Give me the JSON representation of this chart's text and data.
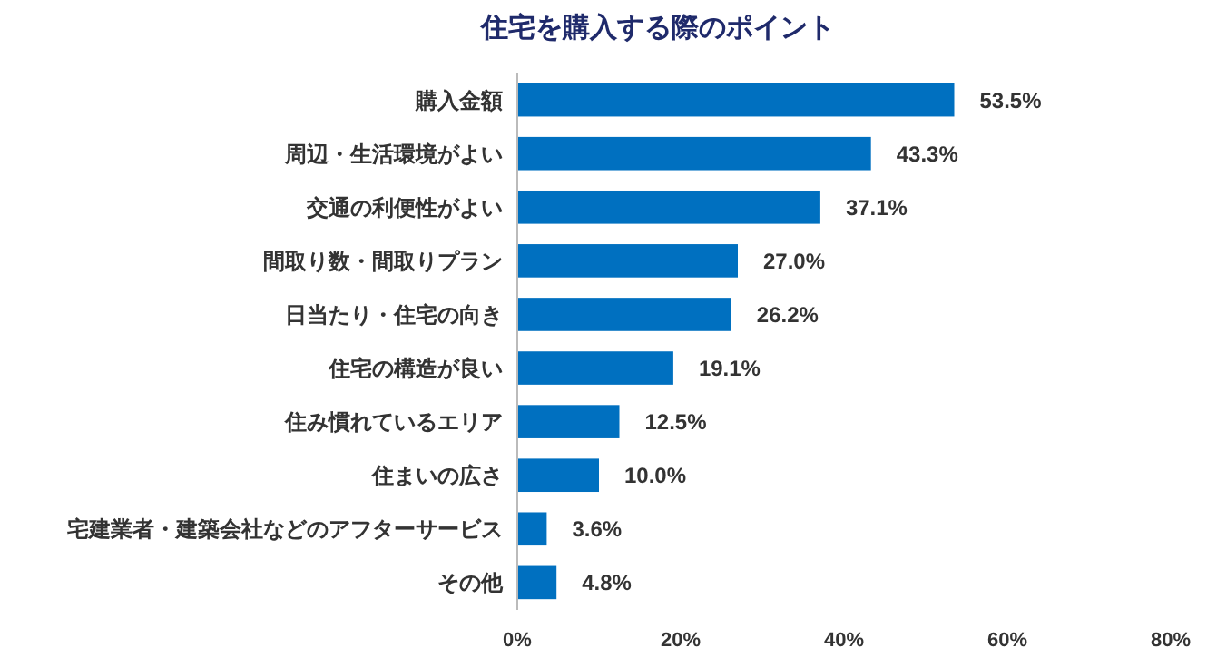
{
  "chart_data": {
    "type": "bar",
    "orientation": "horizontal",
    "title": "住宅を購入する際のポイント",
    "categories": [
      "購入金額",
      "周辺・生活環境がよい",
      "交通の利便性がよい",
      "間取り数・間取りプラン",
      "日当たり・住宅の向き",
      "住宅の構造が良い",
      "住み慣れているエリア",
      "住まいの広さ",
      "宅建業者・建築会社などのアフターサービス",
      "その他"
    ],
    "values": [
      53.5,
      43.3,
      37.1,
      27.0,
      26.2,
      19.1,
      12.5,
      10.0,
      3.6,
      4.8
    ],
    "value_labels": [
      "53.5%",
      "43.3%",
      "37.1%",
      "27.0%",
      "26.2%",
      "19.1%",
      "12.5%",
      "10.0%",
      "3.6%",
      "4.8%"
    ],
    "color": "#0070c0",
    "xlim": [
      0,
      80
    ],
    "xticks": [
      {
        "value": 0,
        "label": "0%"
      },
      {
        "value": 20,
        "label": "20%"
      },
      {
        "value": 40,
        "label": "40%"
      },
      {
        "value": 60,
        "label": "60%"
      },
      {
        "value": 80,
        "label": "80%"
      }
    ],
    "grid": false
  }
}
